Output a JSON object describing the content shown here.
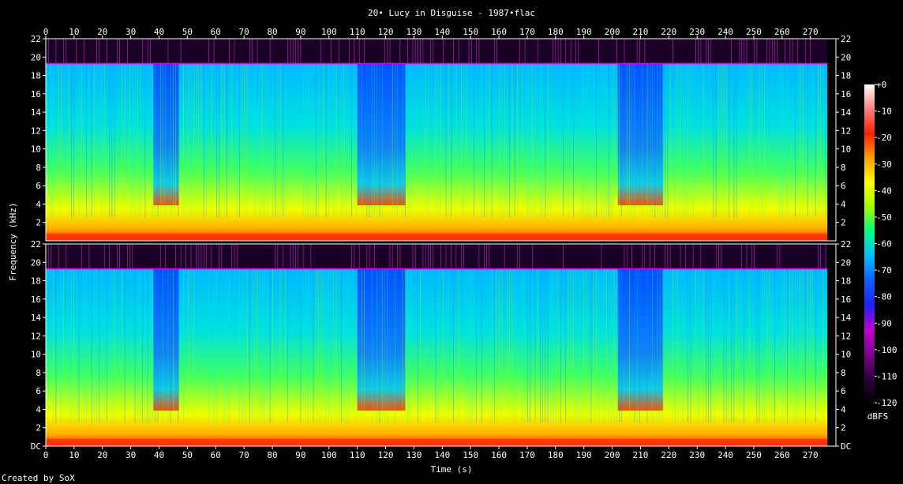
{
  "chart_data": {
    "type": "heatmap",
    "subtype": "spectrogram",
    "title": "20• Lucy in Disguise - 1987•flac",
    "xlabel": "Time (s)",
    "ylabel": "Frequency (kHz)",
    "footer": "Created by SoX",
    "colorbar_label": "dBFS",
    "x_ticks": [
      0,
      10,
      20,
      30,
      40,
      50,
      60,
      70,
      80,
      90,
      100,
      110,
      120,
      130,
      140,
      150,
      160,
      170,
      180,
      190,
      200,
      210,
      220,
      230,
      240,
      250,
      260,
      270
    ],
    "xlim": [
      0,
      279
    ],
    "y_ticks": [
      "DC",
      "2",
      "4",
      "6",
      "8",
      "10",
      "12",
      "14",
      "16",
      "18",
      "20",
      "22"
    ],
    "ylim": [
      0,
      22
    ],
    "colorbar_ticks": [
      "+0",
      "-10",
      "-20",
      "-30",
      "-40",
      "-50",
      "-60",
      "-70",
      "-80",
      "-90",
      "-100",
      "-110",
      "-120"
    ],
    "colorbar_range": [
      -120,
      0
    ],
    "channels": 2,
    "lowpass_cutoff_khz": 19.3,
    "audio_end_s": 276,
    "grid": false,
    "colors": {
      "background": "#000000",
      "axis": "#ffffff",
      "colormap": [
        "#000000",
        "#300040",
        "#7a0090",
        "#c000d0",
        "#2020ff",
        "#1060ff",
        "#00c0ff",
        "#00ff80",
        "#a0ff00",
        "#ffff00",
        "#ffa000",
        "#ff2000",
        "#ff8080",
        "#ffffff"
      ]
    }
  }
}
